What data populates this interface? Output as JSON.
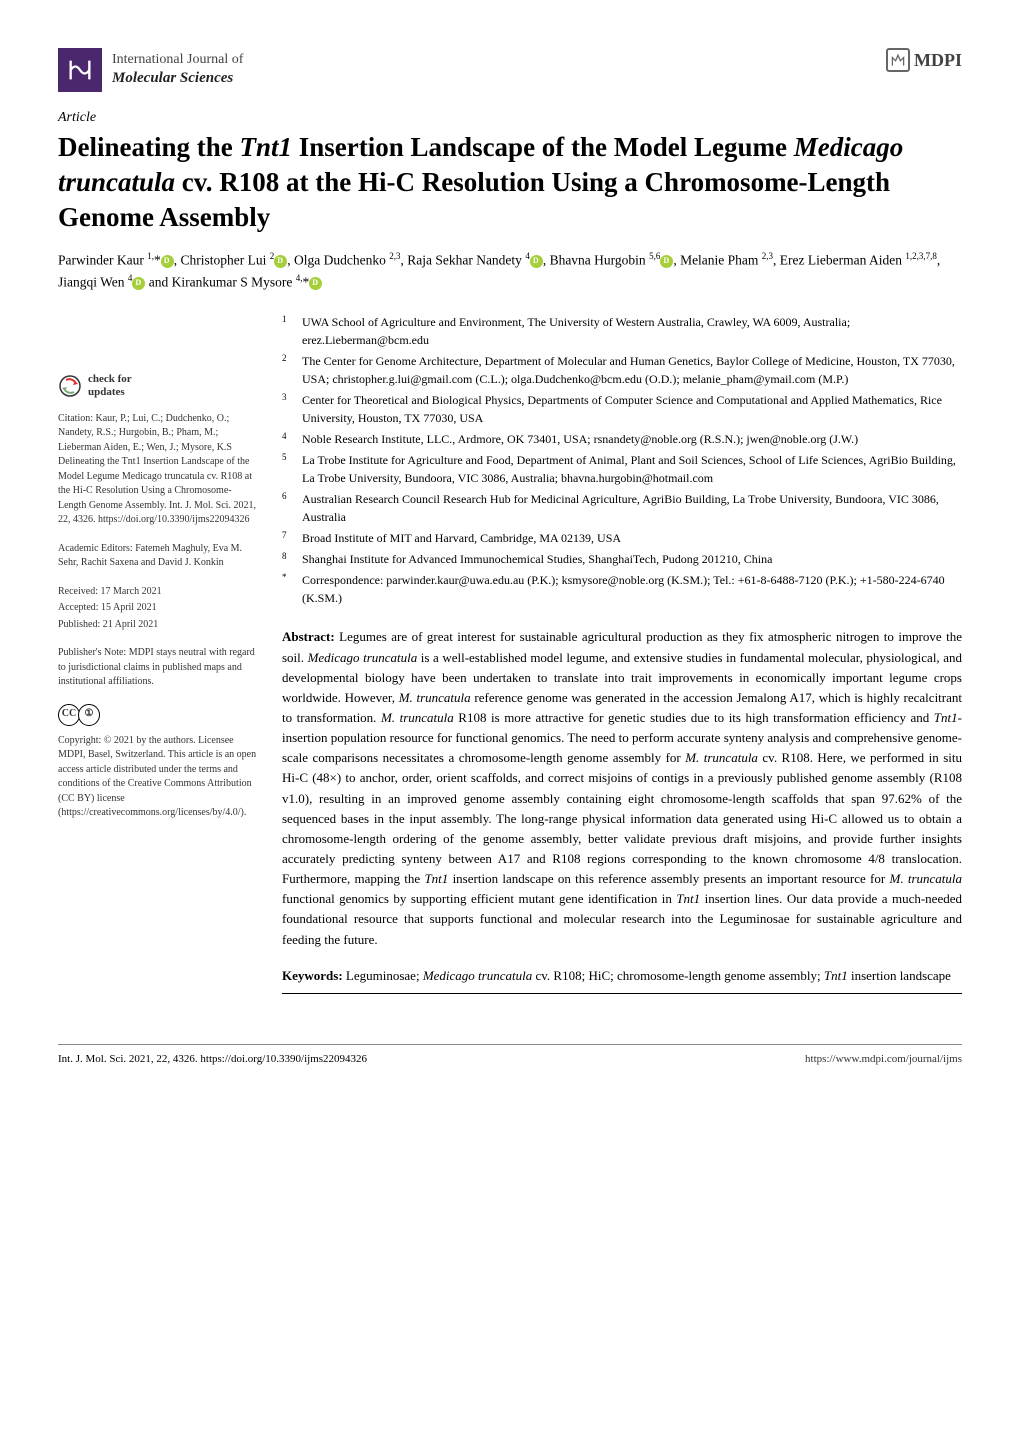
{
  "journal": {
    "line1": "International Journal of",
    "line2": "Molecular Sciences",
    "publisher": "MDPI"
  },
  "article_type": "Article",
  "title_html": "Delineating the <em>Tnt1</em> Insertion Landscape of the Model Legume <em>Medicago truncatula</em> cv. R108 at the Hi-C Resolution Using a Chromosome-Length Genome Assembly",
  "authors_html": "Parwinder Kaur <sup>1,</sup>*<span class='orcid'></span>, Christopher Lui <sup>2</sup><span class='orcid'></span>, Olga Dudchenko <sup>2,3</sup>, Raja Sekhar Nandety <sup>4</sup><span class='orcid'></span>, Bhavna Hurgobin <sup>5,6</sup><span class='orcid'></span>, Melanie Pham <sup>2,3</sup>, Erez Lieberman Aiden <sup>1,2,3,7,8</sup>, Jiangqi Wen <sup>4</sup><span class='orcid'></span> and Kirankumar S Mysore <sup>4,</sup>*<span class='orcid'></span>",
  "affiliations": [
    {
      "n": "1",
      "text": "UWA School of Agriculture and Environment, The University of Western Australia, Crawley, WA 6009, Australia; erez.Lieberman@bcm.edu"
    },
    {
      "n": "2",
      "text": "The Center for Genome Architecture, Department of Molecular and Human Genetics, Baylor College of Medicine, Houston, TX 77030, USA; christopher.g.lui@gmail.com (C.L.); olga.Dudchenko@bcm.edu (O.D.); melanie_pham@ymail.com (M.P.)"
    },
    {
      "n": "3",
      "text": "Center for Theoretical and Biological Physics, Departments of Computer Science and Computational and Applied Mathematics, Rice University, Houston, TX 77030, USA"
    },
    {
      "n": "4",
      "text": "Noble Research Institute, LLC., Ardmore, OK 73401, USA; rsnandety@noble.org (R.S.N.); jwen@noble.org (J.W.)"
    },
    {
      "n": "5",
      "text": "La Trobe Institute for Agriculture and Food, Department of Animal, Plant and Soil Sciences, School of Life Sciences, AgriBio Building, La Trobe University, Bundoora, VIC 3086, Australia; bhavna.hurgobin@hotmail.com"
    },
    {
      "n": "6",
      "text": "Australian Research Council Research Hub for Medicinal Agriculture, AgriBio Building, La Trobe University, Bundoora, VIC 3086, Australia"
    },
    {
      "n": "7",
      "text": "Broad Institute of MIT and Harvard, Cambridge, MA 02139, USA"
    },
    {
      "n": "8",
      "text": "Shanghai Institute for Advanced Immunochemical Studies, ShanghaiTech, Pudong 201210, China"
    },
    {
      "n": "*",
      "text": "Correspondence: parwinder.kaur@uwa.edu.au (P.K.); ksmysore@noble.org (K.SM.); Tel.: +61-8-6488-7120 (P.K.); +1-580-224-6740 (K.SM.)"
    }
  ],
  "sidebar": {
    "check_label": "check for",
    "updates_label": "updates",
    "citation": "Citation: Kaur, P.; Lui, C.; Dudchenko, O.; Nandety, R.S.; Hurgobin, B.; Pham, M.; Lieberman Aiden, E.; Wen, J.; Mysore, K.S Delineating the Tnt1 Insertion Landscape of the Model Legume Medicago truncatula cv. R108 at the Hi-C Resolution Using a Chromosome-Length Genome Assembly. Int. J. Mol. Sci. 2021, 22, 4326. https://doi.org/10.3390/ijms22094326",
    "editors": "Academic Editors: Fatemeh Maghuly, Eva M. Sehr, Rachit Saxena and David J. Konkin",
    "received": "Received: 17 March 2021",
    "accepted": "Accepted: 15 April 2021",
    "published": "Published: 21 April 2021",
    "publishers_note": "Publisher's Note: MDPI stays neutral with regard to jurisdictional claims in published maps and institutional affiliations.",
    "copyright": "Copyright: © 2021 by the authors. Licensee MDPI, Basel, Switzerland. This article is an open access article distributed under the terms and conditions of the Creative Commons Attribution (CC BY) license (https://creativecommons.org/licenses/by/4.0/)."
  },
  "abstract_label": "Abstract:",
  "abstract_html": "Legumes are of great interest for sustainable agricultural production as they fix atmospheric nitrogen to improve the soil. <em>Medicago truncatula</em> is a well-established model legume, and extensive studies in fundamental molecular, physiological, and developmental biology have been undertaken to translate into trait improvements in economically important legume crops worldwide. However, <em>M. truncatula</em> reference genome was generated in the accession Jemalong A17, which is highly recalcitrant to transformation. <em>M. truncatula</em> R108 is more attractive for genetic studies due to its high transformation efficiency and <em>Tnt1</em>-insertion population resource for functional genomics. The need to perform accurate synteny analysis and comprehensive genome-scale comparisons necessitates a chromosome-length genome assembly for <em>M. truncatula</em> cv. R108. Here, we performed in situ Hi-C (48×) to anchor, order, orient scaffolds, and correct misjoins of contigs in a previously published genome assembly (R108 v1.0), resulting in an improved genome assembly containing eight chromosome-length scaffolds that span 97.62% of the sequenced bases in the input assembly. The long-range physical information data generated using Hi-C allowed us to obtain a chromosome-length ordering of the genome assembly, better validate previous draft misjoins, and provide further insights accurately predicting synteny between A17 and R108 regions corresponding to the known chromosome 4/8 translocation. Furthermore, mapping the <em>Tnt1</em> insertion landscape on this reference assembly presents an important resource for <em>M. truncatula</em> functional genomics by supporting efficient mutant gene identification in <em>Tnt1</em> insertion lines. Our data provide a much-needed foundational resource that supports functional and molecular research into the Leguminosae for sustainable agriculture and feeding the future.",
  "keywords_label": "Keywords:",
  "keywords_html": "Leguminosae; <em>Medicago truncatula</em> cv. R108; HiC; chromosome-length genome assembly; <em>Tnt1</em> insertion landscape",
  "footer": {
    "left": "Int. J. Mol. Sci. 2021, 22, 4326. https://doi.org/10.3390/ijms22094326",
    "right": "https://www.mdpi.com/journal/ijms"
  },
  "colors": {
    "logo_bg": "#4b286d",
    "orcid": "#a6ce39",
    "text": "#000000"
  }
}
